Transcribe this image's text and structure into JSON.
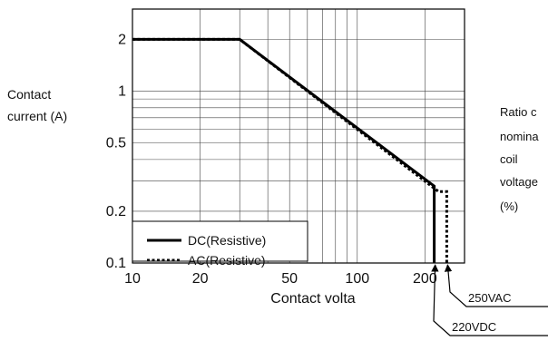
{
  "chart_data": {
    "type": "line",
    "title": "",
    "xlabel": "Contact volta",
    "ylabel": [
      "Contact",
      "current (A)"
    ],
    "right_label": [
      "Ratio c",
      "nomina",
      "coil",
      "voltage",
      "(%)"
    ],
    "x_scale": "log",
    "y_scale": "log",
    "xlim": [
      10,
      300
    ],
    "ylim": [
      0.1,
      3
    ],
    "grid": true,
    "legend_position": "bottom-left",
    "x_ticks": [
      {
        "value": 10,
        "label": "10"
      },
      {
        "value": 20,
        "label": "20"
      },
      {
        "value": 50,
        "label": "50"
      },
      {
        "value": 100,
        "label": "100"
      },
      {
        "value": 200,
        "label": "200"
      }
    ],
    "y_ticks": [
      {
        "value": 0.1,
        "label": "0.1"
      },
      {
        "value": 0.2,
        "label": "0.2"
      },
      {
        "value": 0.5,
        "label": "0.5"
      },
      {
        "value": 1,
        "label": "1"
      },
      {
        "value": 2,
        "label": "2"
      }
    ],
    "series": [
      {
        "name": "DC(Resistive)",
        "style": "solid",
        "color": "#000000",
        "points": [
          [
            10,
            2
          ],
          [
            30,
            2
          ],
          [
            220,
            0.28
          ],
          [
            220,
            0.1
          ]
        ]
      },
      {
        "name": "AC(Resistive)",
        "style": "dotted",
        "color": "#000000",
        "points": [
          [
            10,
            2
          ],
          [
            30,
            2
          ],
          [
            230,
            0.26
          ],
          [
            250,
            0.26
          ],
          [
            250,
            0.1
          ]
        ]
      }
    ],
    "annotations": [
      {
        "text": "250VAC",
        "at": [
          250,
          0.1
        ]
      },
      {
        "text": "220VDC",
        "at": [
          220,
          0.1
        ]
      }
    ]
  }
}
